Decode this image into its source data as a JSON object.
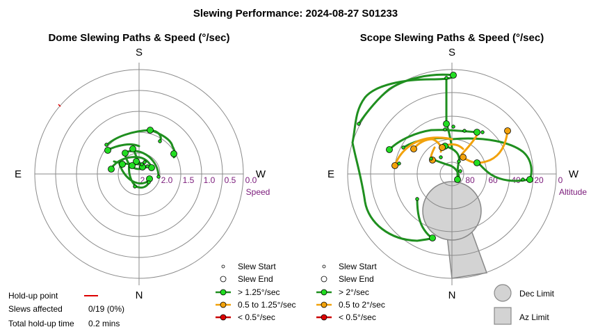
{
  "title": "Slewing Performance: 2024-08-27 S01233",
  "chart_data": [
    {
      "type": "polar-paths",
      "subtitle": "Dome Slewing Paths & Speed (°/sec)",
      "directions": {
        "top": "S",
        "bottom": "N",
        "left": "E",
        "right": "W"
      },
      "radial_ticks": [
        "2",
        "2.0",
        "1.5",
        "1.0",
        "0.5",
        "0.0"
      ],
      "radial_label": "Speed",
      "legend": [
        {
          "label": "Slew Start",
          "kind": "small-dot"
        },
        {
          "label": "Slew End",
          "kind": "open-circle"
        },
        {
          "label": "> 1.25°/sec",
          "kind": "line",
          "color": "#1f8f1f",
          "marker": "#22dd22"
        },
        {
          "label": "0.5 to 1.25°/sec",
          "kind": "line",
          "color": "#f2a20c",
          "marker": "#f2a20c"
        },
        {
          "label": "< 0.5°/sec",
          "kind": "line",
          "color": "#cc0000",
          "marker": "#dd0000"
        }
      ]
    },
    {
      "type": "polar-paths",
      "subtitle": "Scope Slewing Paths & Speed (°/sec)",
      "directions": {
        "top": "S",
        "bottom": "N",
        "left": "E",
        "right": "W"
      },
      "radial_ticks": [
        "80",
        "60",
        "40",
        "20",
        "0"
      ],
      "radial_label": "Altitude",
      "legend": [
        {
          "label": "Slew Start",
          "kind": "small-dot"
        },
        {
          "label": "Slew End",
          "kind": "open-circle"
        },
        {
          "label": "> 2°/sec",
          "kind": "line",
          "color": "#1f8f1f",
          "marker": "#22dd22"
        },
        {
          "label": "0.5 to 2°/sec",
          "kind": "line",
          "color": "#f2a20c",
          "marker": "#f2a20c"
        },
        {
          "label": "< 0.5°/sec",
          "kind": "line",
          "color": "#cc0000",
          "marker": "#dd0000"
        }
      ],
      "limits_legend": [
        {
          "label": "Dec Limit",
          "kind": "circle"
        },
        {
          "label": "Az Limit",
          "kind": "square"
        }
      ]
    }
  ],
  "holdup": {
    "point_label": "Hold-up point",
    "slews_label": "Slews affected",
    "slews_value": "0/19 (0%)",
    "time_label": "Total hold-up time",
    "time_value": "0.2 mins",
    "color": "#dd0000"
  },
  "colors": {
    "fast": "#1f8f1f",
    "fast_marker": "#22dd22",
    "medium": "#f2a20c",
    "slow": "#cc0000",
    "grid": "#8a8a8a",
    "limit_fill": "#d3d3d3"
  }
}
